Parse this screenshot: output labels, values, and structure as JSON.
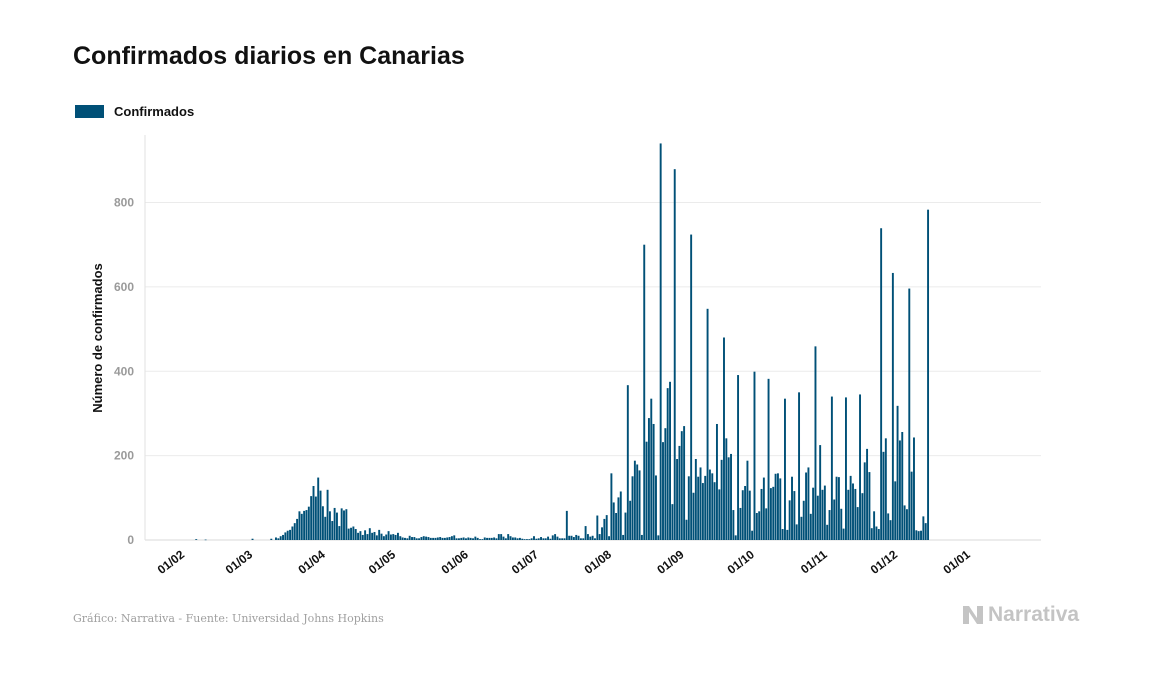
{
  "title": "Confirmados diarios en Canarias",
  "legend": {
    "label": "Confirmados",
    "color": "#005077"
  },
  "footer": {
    "source": "Gráfico: Narrativa - Fuente: Universidad Johns Hopkins",
    "brand": "Narrativa",
    "brand_color": "#c4c4c4"
  },
  "chart_data": {
    "type": "bar",
    "ylabel": "Número de confirmados",
    "ylim": [
      0,
      960
    ],
    "yticks": [
      0,
      200,
      400,
      600,
      800
    ],
    "grid": true,
    "x_tick_labels": [
      "01/02",
      "01/03",
      "01/04",
      "01/05",
      "01/06",
      "01/07",
      "01/08",
      "01/09",
      "01/10",
      "01/11",
      "01/12",
      "01/01"
    ],
    "x_start": "2020-01-22",
    "series": [
      {
        "name": "Confirmados",
        "color": "#005077",
        "values": [
          0,
          0,
          0,
          0,
          0,
          0,
          0,
          0,
          0,
          0,
          0,
          0,
          0,
          0,
          0,
          0,
          2,
          0,
          0,
          0,
          1,
          0,
          0,
          0,
          0,
          0,
          0,
          0,
          0,
          0,
          0,
          0,
          0,
          0,
          0,
          0,
          0,
          0,
          0,
          0,
          3,
          0,
          0,
          0,
          0,
          0,
          0,
          0,
          3,
          0,
          6,
          4,
          9,
          12,
          18,
          22,
          24,
          32,
          40,
          50,
          68,
          62,
          69,
          71,
          79,
          104,
          128,
          103,
          148,
          117,
          80,
          55,
          119,
          68,
          45,
          76,
          65,
          33,
          75,
          70,
          73,
          27,
          29,
          32,
          26,
          17,
          21,
          12,
          23,
          14,
          28,
          17,
          19,
          11,
          24,
          15,
          9,
          13,
          21,
          13,
          14,
          12,
          17,
          9,
          6,
          5,
          4,
          10,
          7,
          7,
          4,
          4,
          7,
          9,
          8,
          7,
          5,
          5,
          5,
          6,
          7,
          5,
          5,
          6,
          7,
          9,
          11,
          4,
          4,
          5,
          6,
          4,
          6,
          5,
          4,
          8,
          5,
          2,
          2,
          6,
          5,
          5,
          5,
          6,
          4,
          14,
          14,
          8,
          4,
          14,
          9,
          6,
          6,
          4,
          5,
          3,
          2,
          2,
          2,
          4,
          9,
          3,
          4,
          7,
          4,
          4,
          8,
          3,
          11,
          14,
          8,
          4,
          4,
          4,
          69,
          10,
          10,
          7,
          12,
          10,
          4,
          4,
          33,
          14,
          8,
          10,
          4,
          58,
          14,
          30,
          50,
          59,
          9,
          158,
          89,
          64,
          101,
          115,
          12,
          65,
          367,
          93,
          151,
          188,
          179,
          165,
          12,
          700,
          233,
          289,
          335,
          275,
          153,
          11,
          940,
          232,
          265,
          360,
          375,
          85,
          879,
          192,
          223,
          258,
          270,
          48,
          151,
          724,
          112,
          192,
          150,
          172,
          135,
          152,
          548,
          167,
          158,
          137,
          275,
          120,
          190,
          480,
          241,
          196,
          204,
          71,
          11,
          391,
          76,
          118,
          128,
          188,
          117,
          22,
          399,
          64,
          68,
          121,
          148,
          75,
          382,
          123,
          126,
          157,
          158,
          146,
          26,
          335,
          24,
          94,
          150,
          116,
          37,
          350,
          55,
          93,
          160,
          172,
          62,
          124,
          459,
          105,
          225,
          119,
          129,
          36,
          71,
          340,
          96,
          150,
          149,
          74,
          27,
          338,
          119,
          152,
          134,
          121,
          78,
          345,
          111,
          184,
          216,
          161,
          28,
          68,
          32,
          26,
          739,
          209,
          241,
          63,
          47,
          633,
          139,
          318,
          236,
          256,
          82,
          73,
          596,
          162,
          243,
          23,
          21,
          22,
          56,
          40,
          783
        ]
      }
    ]
  }
}
